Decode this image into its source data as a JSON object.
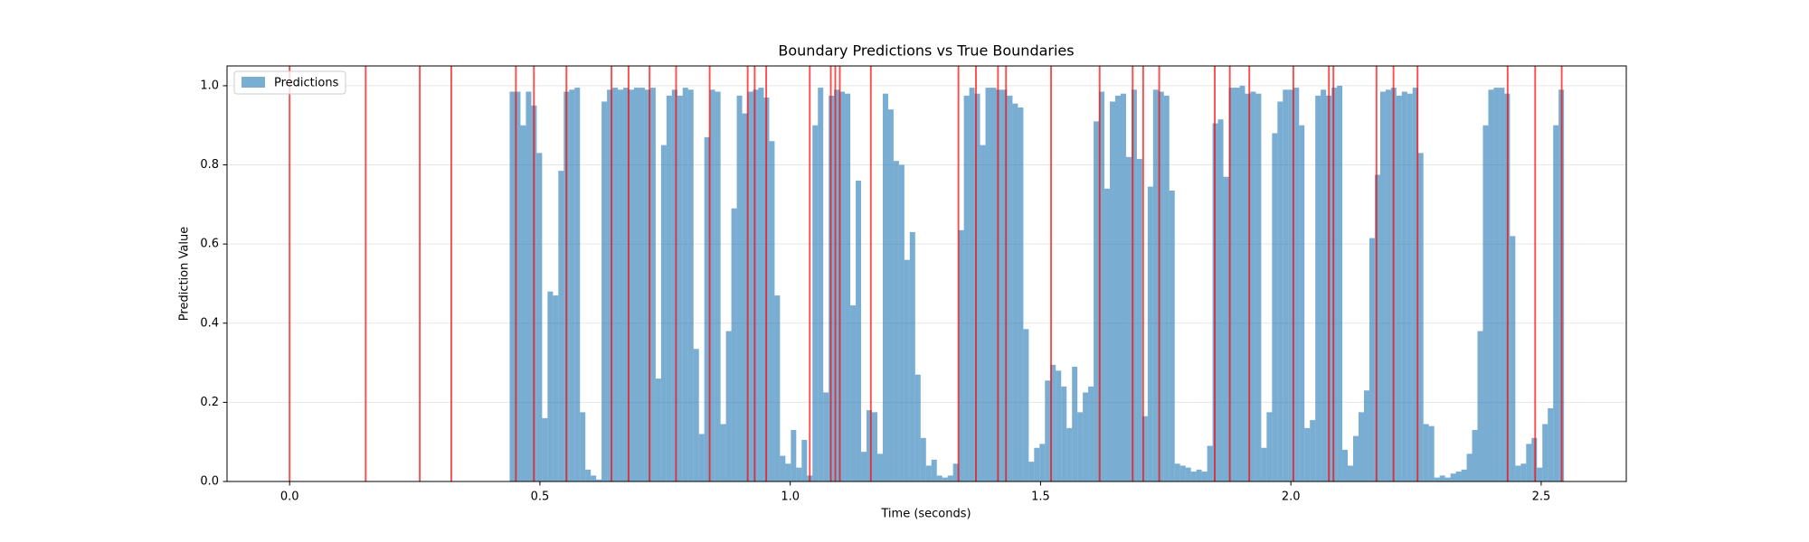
{
  "chart_data": {
    "type": "bar",
    "title": "Boundary Predictions vs True Boundaries",
    "xlabel": "Time (seconds)",
    "ylabel": "Prediction Value",
    "x": [
      0.445,
      0.4558,
      0.4666,
      0.4774,
      0.4882,
      0.499,
      0.5098,
      0.5206,
      0.5314,
      0.5422,
      0.553,
      0.5638,
      0.5746,
      0.5854,
      0.5962,
      0.607,
      0.6178,
      0.6286,
      0.6394,
      0.6502,
      0.661,
      0.6718,
      0.6826,
      0.6934,
      0.7042,
      0.715,
      0.7258,
      0.7366,
      0.7474,
      0.7582,
      0.769,
      0.7798,
      0.7906,
      0.8014,
      0.8122,
      0.823,
      0.8338,
      0.8446,
      0.8554,
      0.8662,
      0.877,
      0.8878,
      0.8986,
      0.9094,
      0.9202,
      0.931,
      0.9418,
      0.9526,
      0.9634,
      0.9742,
      0.985,
      0.9958,
      1.0066,
      1.0174,
      1.0282,
      1.039,
      1.0498,
      1.0606,
      1.0714,
      1.0822,
      1.093,
      1.1038,
      1.1146,
      1.1254,
      1.1362,
      1.147,
      1.1578,
      1.1686,
      1.1794,
      1.1902,
      1.201,
      1.2118,
      1.2226,
      1.2334,
      1.2442,
      1.255,
      1.2658,
      1.2766,
      1.2874,
      1.2982,
      1.309,
      1.3198,
      1.3306,
      1.3414,
      1.3522,
      1.363,
      1.3738,
      1.3846,
      1.3954,
      1.4062,
      1.417,
      1.4278,
      1.4386,
      1.4494,
      1.4602,
      1.471,
      1.4818,
      1.4926,
      1.5034,
      1.5142,
      1.525,
      1.5358,
      1.5466,
      1.5574,
      1.5682,
      1.579,
      1.5898,
      1.6006,
      1.6114,
      1.6222,
      1.633,
      1.6438,
      1.6546,
      1.6654,
      1.6762,
      1.687,
      1.6978,
      1.7086,
      1.7194,
      1.7302,
      1.741,
      1.7518,
      1.7626,
      1.7734,
      1.7842,
      1.795,
      1.8058,
      1.8166,
      1.8274,
      1.8382,
      1.849,
      1.8598,
      1.8706,
      1.8814,
      1.8922,
      1.903,
      1.9138,
      1.9246,
      1.9354,
      1.9462,
      1.957,
      1.9678,
      1.9786,
      1.9894,
      2.0002,
      2.011,
      2.0218,
      2.0326,
      2.0434,
      2.0542,
      2.065,
      2.0758,
      2.0866,
      2.0974,
      2.1082,
      2.119,
      2.1298,
      2.1406,
      2.1514,
      2.1622,
      2.173,
      2.1838,
      2.1946,
      2.2054,
      2.2162,
      2.227,
      2.2378,
      2.2486,
      2.2594,
      2.2702,
      2.281,
      2.2918,
      2.3026,
      2.3134,
      2.3242,
      2.335,
      2.3458,
      2.3566,
      2.3674,
      2.3782,
      2.389,
      2.3998,
      2.4106,
      2.4214,
      2.4322,
      2.443,
      2.4538,
      2.4646,
      2.4754,
      2.4862,
      2.497,
      2.5078,
      2.5186,
      2.5294,
      2.5402
    ],
    "series": [
      {
        "name": "Predictions",
        "color": "#1f77b4",
        "alpha": 0.6,
        "values": [
          0.985,
          0.985,
          0.9,
          0.985,
          0.95,
          0.83,
          0.16,
          0.48,
          0.47,
          0.785,
          0.985,
          0.99,
          0.995,
          0.175,
          0.03,
          0.015,
          0.005,
          0.96,
          0.99,
          0.995,
          0.99,
          0.995,
          0.99,
          0.995,
          0.995,
          0.99,
          0.995,
          0.26,
          0.85,
          0.975,
          0.99,
          0.975,
          0.995,
          0.99,
          0.335,
          0.12,
          0.87,
          0.99,
          0.985,
          0.145,
          0.38,
          0.69,
          0.975,
          0.93,
          0.985,
          0.99,
          0.995,
          0.97,
          0.86,
          0.47,
          0.065,
          0.045,
          0.13,
          0.035,
          0.105,
          0.015,
          0.9,
          0.995,
          0.225,
          0.975,
          0.99,
          0.985,
          0.98,
          0.445,
          0.76,
          0.075,
          0.18,
          0.175,
          0.07,
          0.98,
          0.94,
          0.81,
          0.8,
          0.56,
          0.63,
          0.27,
          0.11,
          0.04,
          0.055,
          0.015,
          0.01,
          0.015,
          0.045,
          0.635,
          0.975,
          0.995,
          0.98,
          0.85,
          0.995,
          0.995,
          0.99,
          0.99,
          0.975,
          0.955,
          0.945,
          0.385,
          0.05,
          0.085,
          0.095,
          0.255,
          0.295,
          0.28,
          0.24,
          0.135,
          0.29,
          0.175,
          0.225,
          0.24,
          0.91,
          0.985,
          0.74,
          0.96,
          0.975,
          0.98,
          0.82,
          0.99,
          0.815,
          0.165,
          0.745,
          0.99,
          0.985,
          0.975,
          0.735,
          0.045,
          0.04,
          0.035,
          0.025,
          0.03,
          0.025,
          0.09,
          0.905,
          0.915,
          0.77,
          0.995,
          0.995,
          1.0,
          0.98,
          0.985,
          0.98,
          0.085,
          0.175,
          0.88,
          0.96,
          0.99,
          0.99,
          0.995,
          0.9,
          0.135,
          0.155,
          0.975,
          0.99,
          0.975,
          0.995,
          1.0,
          0.08,
          0.04,
          0.115,
          0.175,
          0.23,
          0.615,
          0.775,
          0.985,
          0.99,
          0.995,
          0.975,
          0.985,
          0.98,
          0.995,
          0.83,
          0.145,
          0.14,
          0.01,
          0.015,
          0.01,
          0.02,
          0.025,
          0.03,
          0.07,
          0.13,
          0.38,
          0.9,
          0.99,
          0.995,
          0.995,
          0.98,
          0.62,
          0.04,
          0.045,
          0.095,
          0.11,
          0.035,
          0.145,
          0.185,
          0.9,
          0.99
        ]
      }
    ],
    "vlines": {
      "color": "#ff0000",
      "alpha": 0.7,
      "x": [
        0.0,
        0.152,
        0.26,
        0.323,
        0.452,
        0.488,
        0.553,
        0.643,
        0.677,
        0.719,
        0.772,
        0.839,
        0.915,
        0.929,
        0.952,
        1.039,
        1.081,
        1.09,
        1.099,
        1.161,
        1.336,
        1.371,
        1.415,
        1.431,
        1.521,
        1.618,
        1.684,
        1.705,
        1.737,
        1.848,
        1.878,
        1.917,
        2.005,
        2.076,
        2.085,
        2.171,
        2.205,
        2.253,
        2.433,
        2.488,
        2.541
      ]
    },
    "xlim": [
      -0.125,
      2.67
    ],
    "ylim": [
      0,
      1.05
    ],
    "xticks": [
      {
        "value": 0,
        "label": "0.0"
      },
      {
        "value": 0.5,
        "label": "0.5"
      },
      {
        "value": 1,
        "label": "1.0"
      },
      {
        "value": 1.5,
        "label": "1.5"
      },
      {
        "value": 2,
        "label": "2.0"
      },
      {
        "value": 2.5,
        "label": "2.5"
      }
    ],
    "yticks": [
      {
        "value": 0,
        "label": "0.0"
      },
      {
        "value": 0.2,
        "label": "0.2"
      },
      {
        "value": 0.4,
        "label": "0.4"
      },
      {
        "value": 0.6,
        "label": "0.6"
      },
      {
        "value": 0.8,
        "label": "0.8"
      },
      {
        "value": 1,
        "label": "1.0"
      }
    ],
    "grid": "y",
    "legend": "upper left"
  }
}
